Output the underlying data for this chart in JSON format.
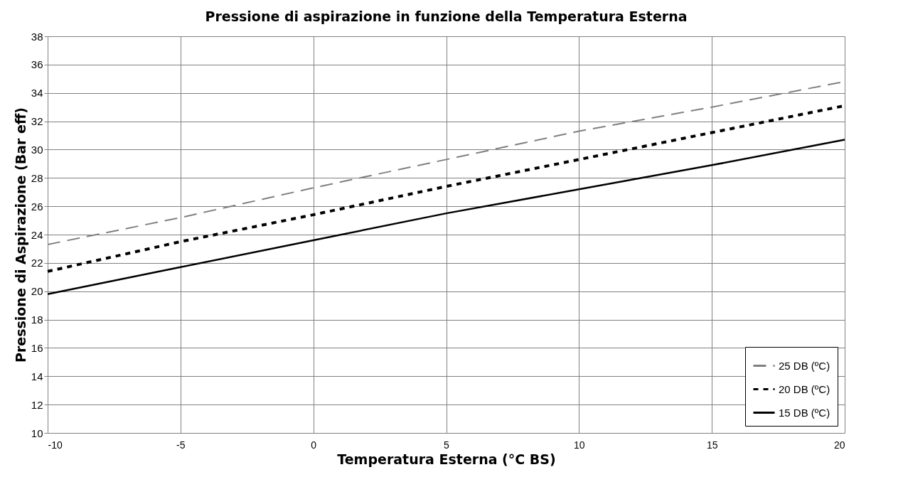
{
  "chart_data": {
    "type": "line",
    "title": "Pressione di aspirazione in funzione della Temperatura Esterna",
    "xlabel": "Temperatura Esterna (°C BS)",
    "ylabel": "Pressione di Aspirazione (Bar eff)",
    "x": [
      -10,
      -5,
      0,
      5,
      10,
      15,
      20
    ],
    "series": [
      {
        "name": "25 DB (ºC)",
        "color": "#808080",
        "line_style": "dashed",
        "values": [
          23.3,
          25.2,
          27.3,
          29.3,
          31.3,
          33.0,
          34.8
        ]
      },
      {
        "name": "20 DB (ºC)",
        "color": "#000000",
        "line_style": "dotted",
        "values": [
          21.4,
          23.5,
          25.4,
          27.4,
          29.3,
          31.2,
          33.1
        ]
      },
      {
        "name": "15 DB (ºC)",
        "color": "#000000",
        "line_style": "solid",
        "values": [
          19.8,
          21.7,
          23.6,
          25.5,
          27.2,
          28.9,
          30.7
        ]
      }
    ],
    "xlim": [
      -10,
      20
    ],
    "xticks": [
      -10,
      -5,
      0,
      5,
      10,
      15,
      20
    ],
    "ylim": [
      10,
      38
    ],
    "yticks": [
      10,
      12,
      14,
      16,
      18,
      20,
      22,
      24,
      26,
      28,
      30,
      32,
      34,
      36,
      38
    ],
    "grid": true,
    "legend": "bottom right",
    "marker": "none"
  }
}
